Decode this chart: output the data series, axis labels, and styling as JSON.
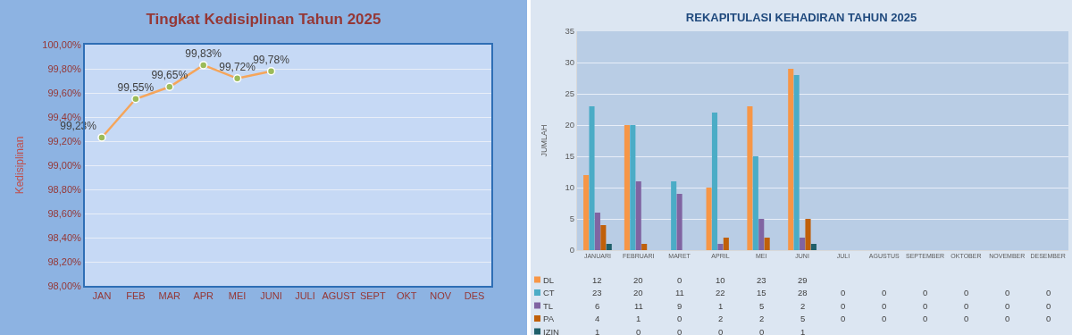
{
  "chart_data": [
    {
      "type": "line",
      "title": "Tingkat Kedisiplinan Tahun 2025",
      "ylabel": "Kedisiplinan",
      "categories": [
        "JAN",
        "FEB",
        "MAR",
        "APR",
        "MEI",
        "JUNI",
        "JULI",
        "AGUST",
        "SEPT",
        "OKT",
        "NOV",
        "DES"
      ],
      "series": [
        {
          "color": "#f5a55a",
          "values": [
            99.23,
            99.55,
            99.65,
            99.83,
            99.72,
            99.78,
            null,
            null,
            null,
            null,
            null,
            null
          ],
          "value_labels": [
            "99,23%",
            "99,55%",
            "99,65%",
            "99,83%",
            "99,72%",
            "99,78%",
            null,
            null,
            null,
            null,
            null,
            null
          ]
        }
      ],
      "ylim": [
        98,
        100
      ],
      "yticks": [
        {
          "value": 98,
          "label": "98,00%"
        },
        {
          "value": 98.2,
          "label": "98,20%"
        },
        {
          "value": 98.4,
          "label": "98,40%"
        },
        {
          "value": 98.6,
          "label": "98,60%"
        },
        {
          "value": 98.8,
          "label": "98,80%"
        },
        {
          "value": 99,
          "label": "99,00%"
        },
        {
          "value": 99.2,
          "label": "99,20%"
        },
        {
          "value": 99.4,
          "label": "99,40%"
        },
        {
          "value": 99.6,
          "label": "99,60%"
        },
        {
          "value": 99.8,
          "label": "99,80%"
        },
        {
          "value": 100,
          "label": "100,00%"
        }
      ],
      "grid": "y",
      "marker": "circle",
      "line_style": "solid"
    },
    {
      "type": "bar",
      "title": "REKAPITULASI KEHADIRAN TAHUN 2025",
      "ylabel": "JUMLAH",
      "categories": [
        "JANUARI",
        "FEBRUARI",
        "MARET",
        "APRIL",
        "MEI",
        "JUNI",
        "JULI",
        "AGUSTUS",
        "SEPTEMBER",
        "OKTOBER",
        "NOVEMBER",
        "DESEMBER"
      ],
      "series": [
        {
          "name": "DL",
          "color": "#f79646",
          "values": [
            12,
            20,
            0,
            10,
            23,
            29,
            null,
            null,
            null,
            null,
            null,
            null
          ]
        },
        {
          "name": "CT",
          "color": "#4bacc6",
          "values": [
            23,
            20,
            11,
            22,
            15,
            28,
            0,
            0,
            0,
            0,
            0,
            0
          ]
        },
        {
          "name": "TL",
          "color": "#8064a2",
          "values": [
            6,
            11,
            9,
            1,
            5,
            2,
            0,
            0,
            0,
            0,
            0,
            0
          ]
        },
        {
          "name": "PA",
          "color": "#c0600a",
          "values": [
            4,
            1,
            0,
            2,
            2,
            5,
            0,
            0,
            0,
            0,
            0,
            0
          ]
        },
        {
          "name": "IZIN",
          "color": "#1f5f6a",
          "values": [
            1,
            0,
            0,
            0,
            0,
            1,
            null,
            null,
            null,
            null,
            null,
            null
          ]
        }
      ],
      "ylim": [
        0,
        35
      ],
      "yticks": [
        0,
        5,
        10,
        15,
        20,
        25,
        30,
        35
      ],
      "grid": "y",
      "data_labels": true,
      "legend": "bottom"
    }
  ]
}
